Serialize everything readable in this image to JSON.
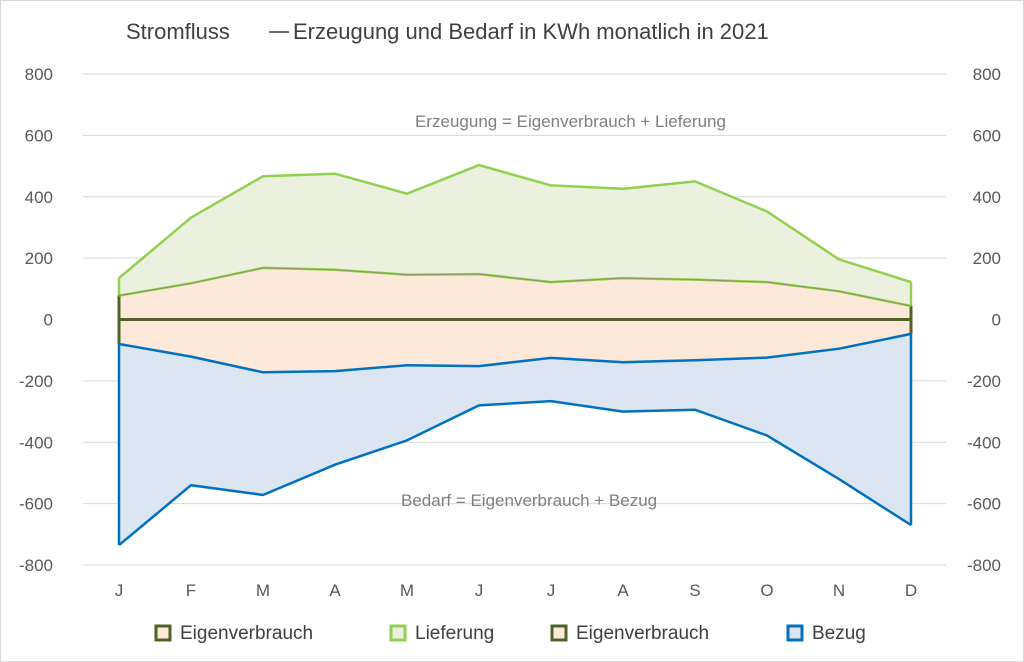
{
  "chart_data": {
    "type": "area",
    "title": "Stromfluss",
    "subtitle": "Erzeugung und Bedarf in KWh monatlich in 2021",
    "categories": [
      "J",
      "F",
      "M",
      "A",
      "M",
      "J",
      "J",
      "A",
      "S",
      "O",
      "N",
      "D"
    ],
    "ylim": [
      -800,
      800
    ],
    "y_ticks": [
      800,
      600,
      400,
      200,
      0,
      -200,
      -400,
      -600,
      -800
    ],
    "y2_ticks": [
      800,
      600,
      400,
      200,
      0,
      -200,
      -400,
      -600,
      -800
    ],
    "grid": true,
    "legend_position": "bottom",
    "series": [
      {
        "name": "Eigenverbrauch",
        "role": "upper-self-consumption",
        "values": [
          78,
          118,
          168,
          162,
          146,
          148,
          122,
          135,
          130,
          122,
          92,
          44
        ]
      },
      {
        "name": "Lieferung",
        "role": "generation-total",
        "values": [
          135,
          332,
          467,
          475,
          410,
          503,
          437,
          426,
          450,
          352,
          196,
          122
        ]
      },
      {
        "name": "Eigenverbrauch",
        "role": "lower-self-consumption",
        "values": [
          -80,
          -121,
          -172,
          -168,
          -149,
          -152,
          -125,
          -139,
          -133,
          -124,
          -95,
          -47
        ]
      },
      {
        "name": "Bezug",
        "role": "demand-total",
        "values": [
          -735,
          -540,
          -572,
          -473,
          -394,
          -280,
          -266,
          -300,
          -294,
          -378,
          -520,
          -670
        ]
      }
    ],
    "annotations": [
      {
        "text": "Erzeugung = Eigenverbrauch      + Lieferung",
        "y": 645
      },
      {
        "text": "Bedarf = Eigenverbrauch      + Bezug",
        "y": -590
      }
    ],
    "colors": {
      "lieferung_line": "#92d050",
      "lieferung_fill": "#ebf1de",
      "eigen_line": "#4f6228",
      "eigen_fill": "#fde9d9",
      "bezug_line": "#0070c0",
      "bezug_fill": "#dce6f2",
      "bezug_fill_upper": "#fde9d9",
      "grid": "#d9d9d9",
      "zero_line": "#4f6228"
    }
  }
}
